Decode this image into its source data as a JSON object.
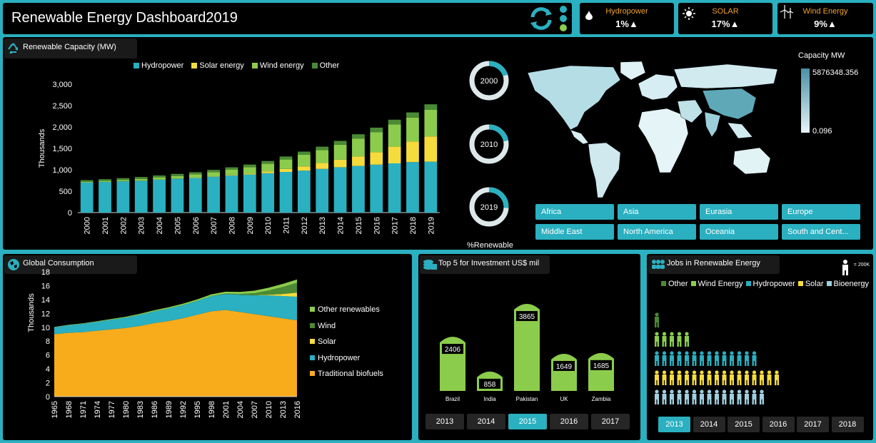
{
  "header": {
    "title": "Renewable Energy Dashboard2019"
  },
  "kpis": [
    {
      "label": "Hydropower",
      "value": "1%▲",
      "icon": "water-drop-icon"
    },
    {
      "label": "SOLAR",
      "value": "17%▲",
      "icon": "sun-icon"
    },
    {
      "label": "Wind Energy",
      "value": "9%▲",
      "icon": "wind-turbine-icon"
    }
  ],
  "colors": {
    "hydro": "#2ab0c0",
    "solar": "#f5dc3c",
    "wind": "#8ccc4c",
    "other": "#4a8a34",
    "biofuel": "#f8ac1c",
    "panel": "#000000",
    "accent": "#2ab0c0"
  },
  "capacity": {
    "tag": "Renewable Capacity (MW)",
    "chart_data": {
      "type": "bar",
      "stacked": true,
      "categories": [
        "2000",
        "2001",
        "2002",
        "2003",
        "2004",
        "2005",
        "2006",
        "2007",
        "2008",
        "2009",
        "2010",
        "2011",
        "2012",
        "2013",
        "2014",
        "2015",
        "2016",
        "2017",
        "2018",
        "2019"
      ],
      "series": [
        {
          "name": "Hydropower",
          "values": [
            700,
            715,
            730,
            745,
            770,
            790,
            810,
            840,
            870,
            890,
            920,
            950,
            980,
            1020,
            1060,
            1090,
            1120,
            1150,
            1180,
            1190
          ]
        },
        {
          "name": "Solar energy",
          "values": [
            1,
            1,
            2,
            3,
            4,
            5,
            7,
            9,
            15,
            22,
            40,
            70,
            100,
            140,
            175,
            220,
            290,
            390,
            480,
            590
          ]
        },
        {
          "name": "Wind energy",
          "values": [
            17,
            24,
            31,
            39,
            48,
            59,
            74,
            94,
            115,
            150,
            180,
            220,
            270,
            300,
            350,
            420,
            470,
            520,
            560,
            620
          ]
        },
        {
          "name": "Other",
          "values": [
            40,
            40,
            42,
            44,
            46,
            50,
            52,
            55,
            58,
            60,
            65,
            70,
            75,
            80,
            90,
            100,
            105,
            110,
            120,
            130
          ]
        }
      ],
      "ylabel": "Thousands",
      "ylim": [
        0,
        3000
      ],
      "yticks": [
        "0",
        "500",
        "1,000",
        "1,500",
        "2,000",
        "2,500",
        "3,000"
      ],
      "yticks_values": [
        0,
        500,
        1000,
        1500,
        2000,
        2500,
        3000
      ]
    }
  },
  "donuts": {
    "items": [
      {
        "label": "2000",
        "fraction": 0.2
      },
      {
        "label": "2010",
        "fraction": 0.22
      },
      {
        "label": "2019",
        "fraction": 0.26
      }
    ],
    "caption": "%Renewable"
  },
  "map": {
    "legend_title": "Capacity MW",
    "max_label": "5876348.356",
    "min_label": "0.096",
    "regions": [
      "Africa",
      "Asia",
      "Eurasia",
      "Europe",
      "Middle East",
      "North America",
      "Oceania",
      "South and Cent..."
    ]
  },
  "consumption": {
    "tag": "Global Consumption",
    "chart_data": {
      "type": "area",
      "stacked": true,
      "x": [
        1965,
        1968,
        1971,
        1974,
        1977,
        1980,
        1983,
        1986,
        1989,
        1992,
        1995,
        1998,
        2001,
        2004,
        2007,
        2010,
        2013,
        2016
      ],
      "series": [
        {
          "name": "Traditional biofuels",
          "values": [
            9.0,
            9.2,
            9.3,
            9.5,
            9.7,
            9.9,
            10.2,
            10.6,
            10.9,
            11.3,
            11.8,
            12.3,
            12.5,
            12.2,
            11.9,
            11.6,
            11.3,
            11.0
          ]
        },
        {
          "name": "Hydropower",
          "values": [
            1.0,
            1.1,
            1.2,
            1.3,
            1.4,
            1.5,
            1.6,
            1.7,
            1.8,
            1.9,
            2.0,
            2.2,
            2.3,
            2.5,
            2.7,
            3.0,
            3.2,
            3.4
          ]
        },
        {
          "name": "Solar",
          "values": [
            0,
            0,
            0,
            0,
            0,
            0,
            0,
            0,
            0,
            0,
            0,
            0,
            0,
            0,
            0.02,
            0.1,
            0.3,
            0.6
          ]
        },
        {
          "name": "Wind",
          "values": [
            0,
            0,
            0,
            0,
            0,
            0,
            0,
            0,
            0,
            0,
            0,
            0,
            0.05,
            0.1,
            0.3,
            0.6,
            1.0,
            1.4
          ]
        },
        {
          "name": "Other renewables",
          "values": [
            0.05,
            0.06,
            0.07,
            0.08,
            0.1,
            0.12,
            0.14,
            0.16,
            0.18,
            0.2,
            0.22,
            0.25,
            0.28,
            0.3,
            0.35,
            0.4,
            0.45,
            0.5
          ]
        }
      ],
      "legend": [
        "Other renewables",
        "Wind",
        "Solar",
        "Hydropower",
        "Traditional biofuels"
      ],
      "ylabel": "Thousands",
      "ylim": [
        0,
        18
      ],
      "yticks": [
        0,
        2,
        4,
        6,
        8,
        10,
        12,
        14,
        16,
        18
      ]
    }
  },
  "investment": {
    "tag": "Top 5 for Investment US$ mil",
    "chart_data": {
      "type": "bar",
      "categories": [
        "Brazil",
        "India",
        "Pakistan",
        "UK",
        "Zambia"
      ],
      "values": [
        2406,
        858,
        3865,
        1649,
        1685
      ],
      "ylim": [
        0,
        4500
      ]
    },
    "years": [
      "2013",
      "2014",
      "2015",
      "2016",
      "2017"
    ],
    "selected_year": "2015"
  },
  "jobs": {
    "tag": "Jobs in Renewable Energy",
    "unit_label": "= 200K",
    "chart_data": {
      "type": "bar",
      "orientation": "horizontal",
      "unit": "200K jobs per icon",
      "categories": [
        "Other",
        "Wind Energy",
        "Hydropower",
        "Solar",
        "Bioenergy"
      ],
      "values": [
        1,
        5,
        14,
        17,
        15
      ]
    },
    "years": [
      "2013",
      "2014",
      "2015",
      "2016",
      "2017",
      "2018"
    ],
    "selected_year": "2013"
  }
}
